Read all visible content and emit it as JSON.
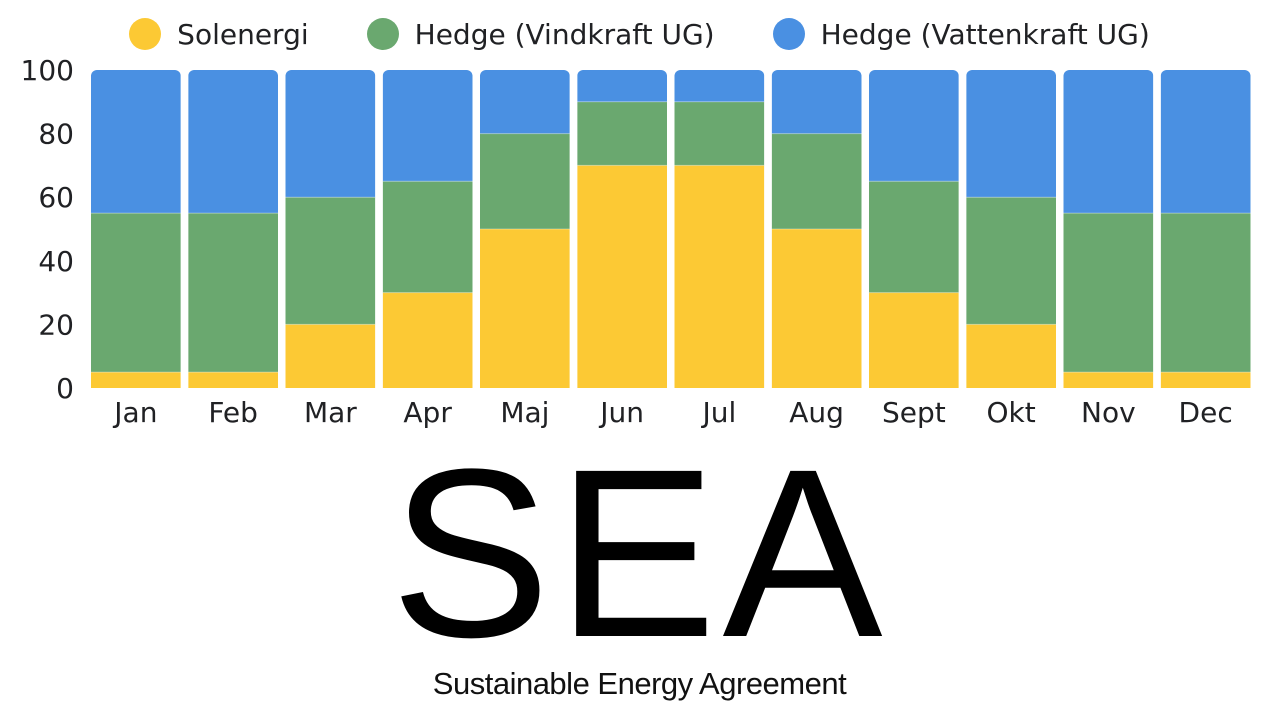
{
  "chart_data": {
    "type": "bar",
    "stacked": true,
    "categories": [
      "Jan",
      "Feb",
      "Mar",
      "Apr",
      "Maj",
      "Jun",
      "Jul",
      "Aug",
      "Sept",
      "Okt",
      "Nov",
      "Dec"
    ],
    "series": [
      {
        "name": "Solenergi",
        "color": "#fcc934",
        "values": [
          5,
          5,
          20,
          30,
          50,
          70,
          70,
          50,
          30,
          20,
          5,
          5
        ]
      },
      {
        "name": "Hedge (Vindkraft UG)",
        "color": "#6aa86f",
        "values": [
          50,
          50,
          40,
          35,
          30,
          20,
          20,
          30,
          35,
          40,
          50,
          50
        ]
      },
      {
        "name": "Hedge (Vattenkraft UG)",
        "color": "#4a90e2",
        "values": [
          45,
          45,
          40,
          35,
          20,
          10,
          10,
          20,
          35,
          40,
          45,
          45
        ]
      }
    ],
    "title": "",
    "xlabel": "",
    "ylabel": "",
    "ylim": [
      0,
      100
    ],
    "yticks": [
      0,
      20,
      40,
      60,
      80,
      100
    ],
    "grid": false,
    "legend": "top-center"
  },
  "logo": {
    "title": "SEA",
    "subtitle": "Sustainable Energy Agreement"
  }
}
